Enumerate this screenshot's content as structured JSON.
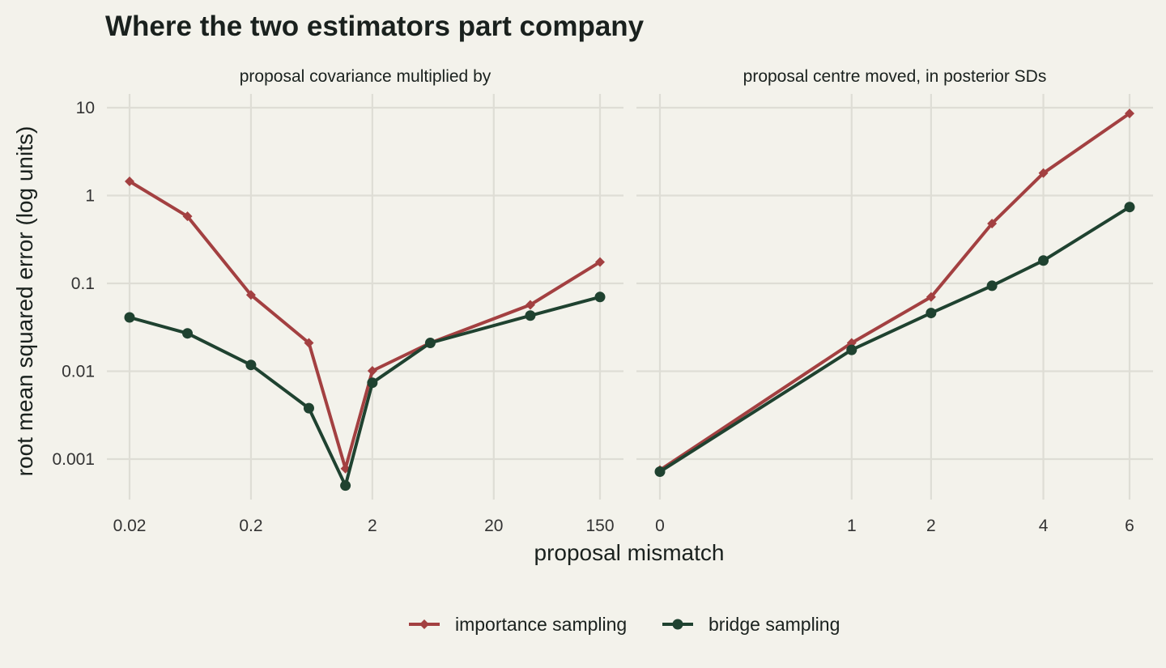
{
  "chart_data": {
    "type": "line",
    "title": "Where the two estimators part company",
    "xlabel": "proposal mismatch",
    "ylabel": "root mean squared error (log units)",
    "y_scale": "log",
    "y_ticks": [
      0.001,
      0.01,
      0.1,
      1,
      10
    ],
    "y_tick_labels": [
      "0.001",
      "0.01",
      "0.1",
      "1",
      "10"
    ],
    "ylim": [
      0.0003,
      13
    ],
    "grid": true,
    "legend_position": "bottom",
    "colors": {
      "importance sampling": "#a34041",
      "bridge sampling": "#1f4230",
      "background": "#f3f2eb"
    },
    "legend": [
      {
        "name": "importance sampling",
        "marker": "diamond"
      },
      {
        "name": "bridge sampling",
        "marker": "circle"
      }
    ],
    "panels": [
      {
        "strip_label": "proposal covariance multiplied by",
        "x_scale": "log",
        "xlim": [
          0.02,
          150
        ],
        "x_ticks": [
          0.02,
          0.2,
          2,
          20,
          150
        ],
        "x_tick_labels": [
          "0.02",
          "0.2",
          "2",
          "20",
          "150"
        ],
        "series": [
          {
            "name": "importance sampling",
            "x": [
              0.02,
              0.06,
              0.2,
              0.6,
              1.2,
              2,
              6,
              40,
              150
            ],
            "y": [
              1.45,
              0.58,
              0.074,
              0.021,
              0.00078,
              0.0101,
              0.021,
              0.057,
              0.175
            ]
          },
          {
            "name": "bridge sampling",
            "x": [
              0.02,
              0.06,
              0.2,
              0.6,
              1.2,
              2,
              6,
              40,
              150
            ],
            "y": [
              0.041,
              0.027,
              0.0118,
              0.0038,
              0.0005,
              0.0074,
              0.021,
              0.043,
              0.07
            ]
          }
        ]
      },
      {
        "strip_label": "proposal centre moved, in posterior SDs",
        "x_scale": "sqrt",
        "xlim": [
          0,
          6
        ],
        "x_ticks": [
          0,
          1,
          2,
          4,
          6
        ],
        "x_tick_labels": [
          "0",
          "1",
          "2",
          "4",
          "6"
        ],
        "series": [
          {
            "name": "importance sampling",
            "x": [
              0,
              1,
              2,
              3,
              4,
              6
            ],
            "y": [
              0.00075,
              0.021,
              0.07,
              0.48,
              1.8,
              8.6
            ]
          },
          {
            "name": "bridge sampling",
            "x": [
              0,
              1,
              2,
              3,
              4,
              6
            ],
            "y": [
              0.00072,
              0.0175,
              0.046,
              0.094,
              0.182,
              0.74
            ]
          }
        ]
      }
    ]
  }
}
